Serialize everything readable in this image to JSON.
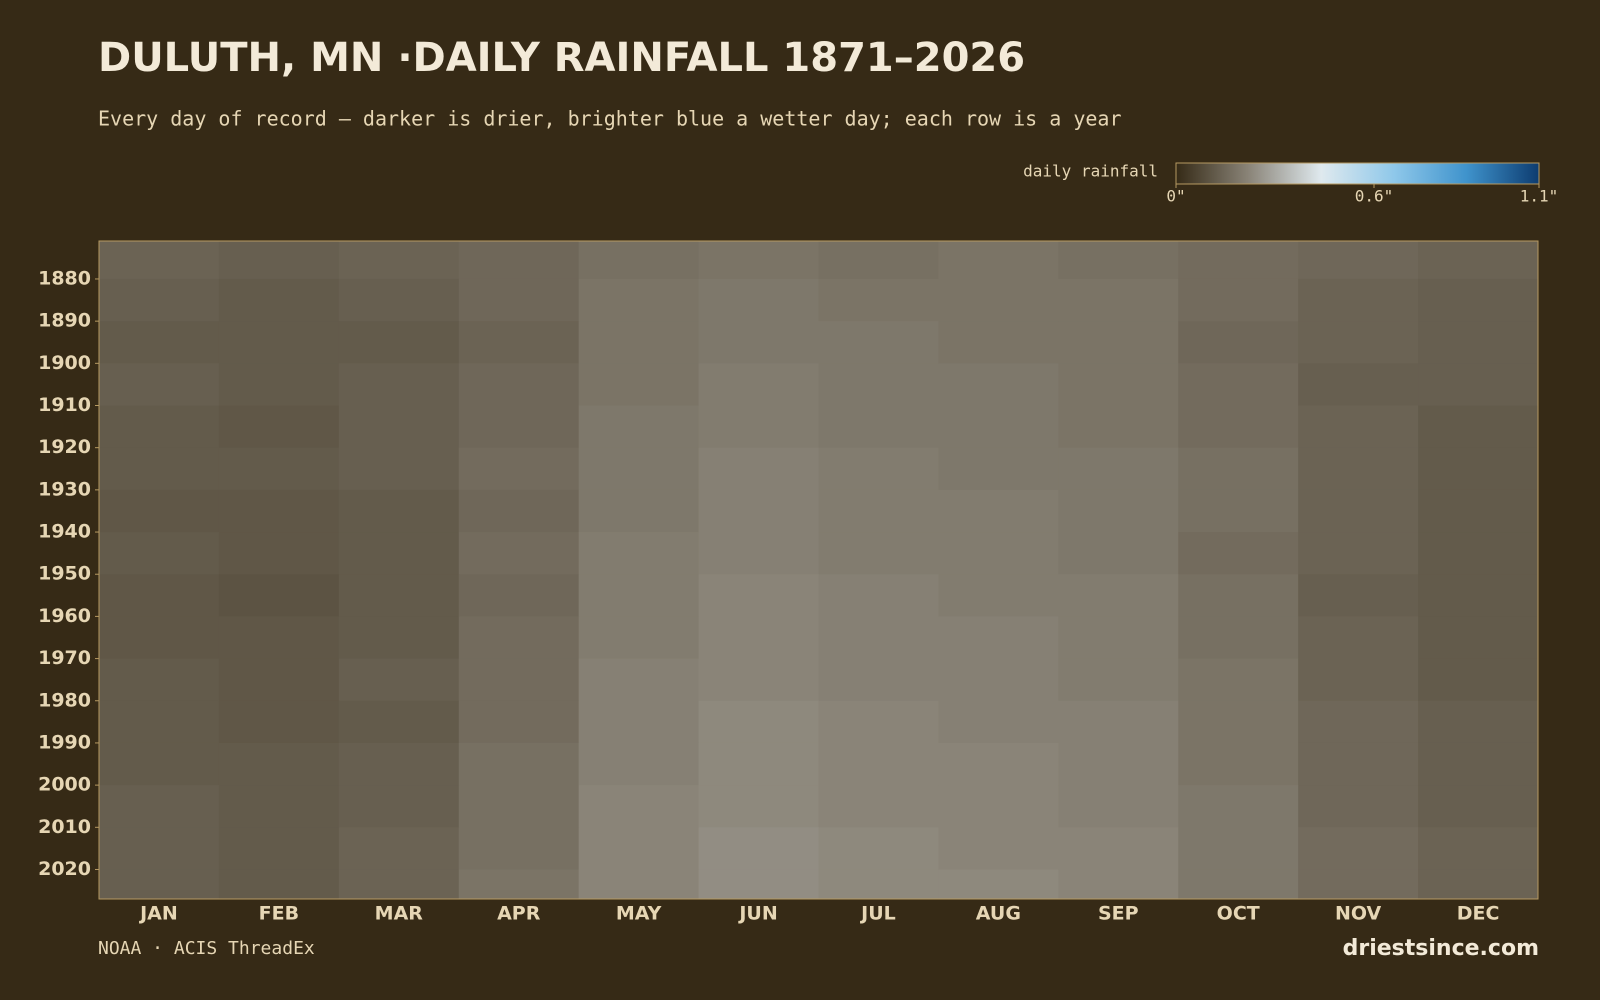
{
  "chart_data": {
    "type": "heatmap",
    "title": "DULUTH, MN ·DAILY RAINFALL 1871–2026",
    "subtitle": "Every day of record — darker is drier, brighter blue a wetter day; each row is a year",
    "source": "NOAA · ACIS ThreadEx",
    "brand": "driestsince.com",
    "colorbar_label": "daily rainfall",
    "colors": [
      "#352a16",
      "#8a8478",
      "#dfe9ee",
      "#8fc8ea",
      "#3f93cc",
      "#0d3c70"
    ],
    "clim": [
      0,
      1.1
    ],
    "cticks": [
      {
        "value": 0,
        "label": "0\""
      },
      {
        "value": 0.6,
        "label": "0.6\""
      },
      {
        "value": 1.1,
        "label": "1.1\""
      }
    ],
    "categories": [
      "JAN",
      "FEB",
      "MAR",
      "APR",
      "MAY",
      "JUN",
      "JUL",
      "AUG",
      "SEP",
      "OCT",
      "NOV",
      "DEC"
    ],
    "ybins": [
      1871,
      1880,
      1890,
      1900,
      1910,
      1920,
      1930,
      1940,
      1950,
      1960,
      1970,
      1980,
      1990,
      2000,
      2010,
      2020,
      2027
    ],
    "ylim": [
      1871,
      2027
    ],
    "yticks": [
      1880,
      1890,
      1900,
      1910,
      1920,
      1930,
      1940,
      1950,
      1960,
      1970,
      1980,
      1990,
      2000,
      2010,
      2020
    ],
    "values": [
      [
        0.14,
        0.13,
        0.14,
        0.15,
        0.17,
        0.18,
        0.17,
        0.18,
        0.17,
        0.16,
        0.15,
        0.14
      ],
      [
        0.13,
        0.12,
        0.13,
        0.15,
        0.18,
        0.19,
        0.18,
        0.18,
        0.18,
        0.16,
        0.14,
        0.13
      ],
      [
        0.12,
        0.12,
        0.12,
        0.14,
        0.18,
        0.19,
        0.19,
        0.18,
        0.18,
        0.15,
        0.14,
        0.13
      ],
      [
        0.13,
        0.12,
        0.13,
        0.15,
        0.18,
        0.2,
        0.19,
        0.19,
        0.18,
        0.16,
        0.13,
        0.13
      ],
      [
        0.12,
        0.11,
        0.13,
        0.15,
        0.19,
        0.2,
        0.19,
        0.19,
        0.18,
        0.16,
        0.14,
        0.12
      ],
      [
        0.12,
        0.12,
        0.13,
        0.16,
        0.19,
        0.21,
        0.2,
        0.19,
        0.19,
        0.17,
        0.14,
        0.12
      ],
      [
        0.11,
        0.11,
        0.12,
        0.15,
        0.19,
        0.21,
        0.2,
        0.2,
        0.19,
        0.17,
        0.14,
        0.12
      ],
      [
        0.12,
        0.11,
        0.12,
        0.16,
        0.2,
        0.21,
        0.2,
        0.2,
        0.19,
        0.16,
        0.14,
        0.12
      ],
      [
        0.11,
        0.1,
        0.12,
        0.15,
        0.2,
        0.22,
        0.21,
        0.2,
        0.2,
        0.17,
        0.13,
        0.12
      ],
      [
        0.11,
        0.11,
        0.12,
        0.16,
        0.2,
        0.22,
        0.21,
        0.21,
        0.2,
        0.17,
        0.14,
        0.12
      ],
      [
        0.12,
        0.11,
        0.13,
        0.16,
        0.21,
        0.22,
        0.21,
        0.21,
        0.2,
        0.18,
        0.14,
        0.12
      ],
      [
        0.12,
        0.11,
        0.12,
        0.16,
        0.21,
        0.23,
        0.22,
        0.21,
        0.21,
        0.18,
        0.15,
        0.13
      ],
      [
        0.12,
        0.12,
        0.13,
        0.17,
        0.21,
        0.23,
        0.22,
        0.22,
        0.21,
        0.18,
        0.15,
        0.13
      ],
      [
        0.13,
        0.12,
        0.13,
        0.17,
        0.22,
        0.23,
        0.22,
        0.22,
        0.21,
        0.19,
        0.15,
        0.13
      ],
      [
        0.13,
        0.12,
        0.14,
        0.17,
        0.22,
        0.24,
        0.23,
        0.22,
        0.22,
        0.19,
        0.16,
        0.14
      ],
      [
        0.13,
        0.12,
        0.14,
        0.18,
        0.22,
        0.24,
        0.23,
        0.23,
        0.22,
        0.19,
        0.16,
        0.14
      ]
    ]
  }
}
